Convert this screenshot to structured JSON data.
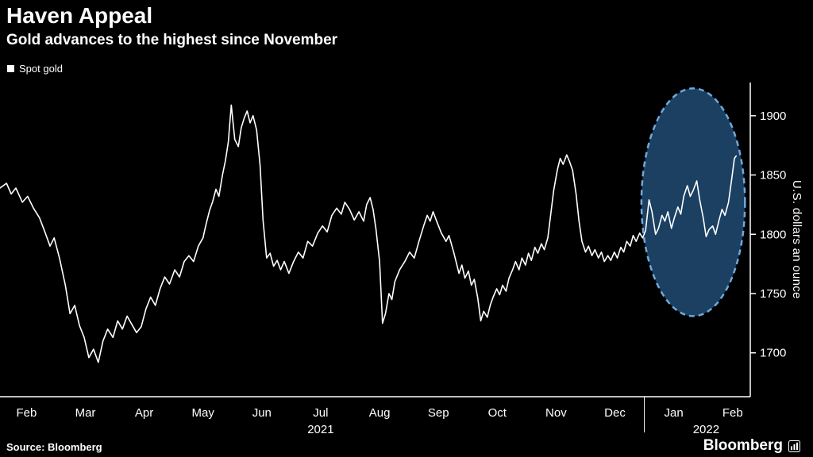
{
  "header": {
    "title": "Haven Appeal",
    "subtitle": "Gold advances to the highest since November"
  },
  "legend": {
    "items": [
      {
        "label": "Spot gold",
        "marker_color": "#ffffff"
      }
    ]
  },
  "footer": {
    "source": "Source: Bloomberg",
    "brand": "Bloomberg"
  },
  "colors": {
    "background": "#000000",
    "line": "#ffffff",
    "axis": "#ffffff",
    "text": "#ffffff",
    "highlight_fill": "#1b4061",
    "highlight_stroke": "#6fa8dc"
  },
  "chart_data": {
    "type": "line",
    "title": "Haven Appeal",
    "subtitle": "Gold advances to the highest since November",
    "series_name": "Spot gold",
    "ylabel": "U.S. dollars an ounce",
    "x_unit": "month-index (0 = Feb 2021, 12 = Feb 2022)",
    "xlim": [
      -0.45,
      12.3
    ],
    "ylim": [
      1663,
      1928
    ],
    "yticks": [
      1700,
      1750,
      1800,
      1850,
      1900
    ],
    "months": [
      "Feb",
      "Mar",
      "Apr",
      "May",
      "Jun",
      "Jul",
      "Aug",
      "Sep",
      "Oct",
      "Nov",
      "Dec",
      "Jan",
      "Feb"
    ],
    "years": [
      {
        "label": "2021",
        "x": 5.0
      },
      {
        "label": "2022",
        "x": 11.55
      }
    ],
    "year_separator_x": 10.5,
    "highlight": {
      "note": "dashed ellipse highlighting Jan-Feb 2022 advance",
      "cx": 11.33,
      "cy": 1827,
      "rx": 0.88,
      "ry": 96
    },
    "points": [
      [
        -0.45,
        1839
      ],
      [
        -0.34,
        1843
      ],
      [
        -0.26,
        1834
      ],
      [
        -0.18,
        1839
      ],
      [
        -0.07,
        1827
      ],
      [
        0.02,
        1832
      ],
      [
        0.12,
        1822
      ],
      [
        0.22,
        1814
      ],
      [
        0.32,
        1801
      ],
      [
        0.4,
        1790
      ],
      [
        0.47,
        1797
      ],
      [
        0.56,
        1780
      ],
      [
        0.66,
        1757
      ],
      [
        0.74,
        1733
      ],
      [
        0.82,
        1740
      ],
      [
        0.9,
        1723
      ],
      [
        0.98,
        1713
      ],
      [
        1.06,
        1696
      ],
      [
        1.14,
        1703
      ],
      [
        1.22,
        1692
      ],
      [
        1.3,
        1710
      ],
      [
        1.38,
        1720
      ],
      [
        1.47,
        1713
      ],
      [
        1.55,
        1727
      ],
      [
        1.63,
        1720
      ],
      [
        1.71,
        1731
      ],
      [
        1.79,
        1724
      ],
      [
        1.87,
        1717
      ],
      [
        1.95,
        1722
      ],
      [
        2.03,
        1737
      ],
      [
        2.11,
        1747
      ],
      [
        2.19,
        1740
      ],
      [
        2.27,
        1754
      ],
      [
        2.35,
        1764
      ],
      [
        2.43,
        1758
      ],
      [
        2.52,
        1770
      ],
      [
        2.6,
        1764
      ],
      [
        2.68,
        1777
      ],
      [
        2.76,
        1782
      ],
      [
        2.84,
        1777
      ],
      [
        2.92,
        1790
      ],
      [
        3.0,
        1797
      ],
      [
        3.05,
        1808
      ],
      [
        3.11,
        1820
      ],
      [
        3.16,
        1827
      ],
      [
        3.22,
        1838
      ],
      [
        3.27,
        1832
      ],
      [
        3.33,
        1850
      ],
      [
        3.38,
        1862
      ],
      [
        3.43,
        1878
      ],
      [
        3.48,
        1909
      ],
      [
        3.54,
        1880
      ],
      [
        3.6,
        1874
      ],
      [
        3.65,
        1890
      ],
      [
        3.7,
        1898
      ],
      [
        3.75,
        1904
      ],
      [
        3.8,
        1894
      ],
      [
        3.85,
        1900
      ],
      [
        3.91,
        1888
      ],
      [
        3.97,
        1858
      ],
      [
        4.02,
        1812
      ],
      [
        4.08,
        1780
      ],
      [
        4.14,
        1784
      ],
      [
        4.2,
        1773
      ],
      [
        4.26,
        1778
      ],
      [
        4.32,
        1770
      ],
      [
        4.38,
        1777
      ],
      [
        4.46,
        1767
      ],
      [
        4.54,
        1777
      ],
      [
        4.62,
        1785
      ],
      [
        4.7,
        1780
      ],
      [
        4.78,
        1794
      ],
      [
        4.86,
        1790
      ],
      [
        4.95,
        1801
      ],
      [
        5.03,
        1807
      ],
      [
        5.11,
        1802
      ],
      [
        5.19,
        1816
      ],
      [
        5.27,
        1822
      ],
      [
        5.35,
        1817
      ],
      [
        5.41,
        1827
      ],
      [
        5.49,
        1821
      ],
      [
        5.57,
        1812
      ],
      [
        5.65,
        1819
      ],
      [
        5.73,
        1811
      ],
      [
        5.78,
        1825
      ],
      [
        5.84,
        1831
      ],
      [
        5.89,
        1821
      ],
      [
        5.94,
        1804
      ],
      [
        6.0,
        1777
      ],
      [
        6.05,
        1725
      ],
      [
        6.1,
        1733
      ],
      [
        6.16,
        1750
      ],
      [
        6.21,
        1745
      ],
      [
        6.26,
        1760
      ],
      [
        6.34,
        1770
      ],
      [
        6.43,
        1777
      ],
      [
        6.51,
        1785
      ],
      [
        6.59,
        1780
      ],
      [
        6.67,
        1794
      ],
      [
        6.75,
        1807
      ],
      [
        6.81,
        1816
      ],
      [
        6.86,
        1811
      ],
      [
        6.91,
        1819
      ],
      [
        6.97,
        1811
      ],
      [
        7.05,
        1801
      ],
      [
        7.13,
        1794
      ],
      [
        7.18,
        1799
      ],
      [
        7.26,
        1785
      ],
      [
        7.35,
        1767
      ],
      [
        7.4,
        1774
      ],
      [
        7.45,
        1763
      ],
      [
        7.51,
        1769
      ],
      [
        7.56,
        1757
      ],
      [
        7.61,
        1762
      ],
      [
        7.67,
        1746
      ],
      [
        7.72,
        1727
      ],
      [
        7.77,
        1735
      ],
      [
        7.83,
        1730
      ],
      [
        7.88,
        1740
      ],
      [
        7.93,
        1747
      ],
      [
        7.99,
        1754
      ],
      [
        8.04,
        1749
      ],
      [
        8.09,
        1757
      ],
      [
        8.15,
        1752
      ],
      [
        8.2,
        1763
      ],
      [
        8.26,
        1770
      ],
      [
        8.31,
        1777
      ],
      [
        8.37,
        1770
      ],
      [
        8.42,
        1780
      ],
      [
        8.48,
        1774
      ],
      [
        8.53,
        1784
      ],
      [
        8.58,
        1778
      ],
      [
        8.64,
        1789
      ],
      [
        8.69,
        1784
      ],
      [
        8.75,
        1792
      ],
      [
        8.8,
        1787
      ],
      [
        8.86,
        1797
      ],
      [
        8.91,
        1817
      ],
      [
        8.96,
        1837
      ],
      [
        9.02,
        1854
      ],
      [
        9.07,
        1864
      ],
      [
        9.12,
        1859
      ],
      [
        9.18,
        1867
      ],
      [
        9.23,
        1861
      ],
      [
        9.28,
        1854
      ],
      [
        9.34,
        1834
      ],
      [
        9.39,
        1811
      ],
      [
        9.44,
        1794
      ],
      [
        9.5,
        1785
      ],
      [
        9.55,
        1790
      ],
      [
        9.61,
        1782
      ],
      [
        9.66,
        1787
      ],
      [
        9.72,
        1780
      ],
      [
        9.77,
        1785
      ],
      [
        9.82,
        1777
      ],
      [
        9.88,
        1782
      ],
      [
        9.93,
        1778
      ],
      [
        9.99,
        1785
      ],
      [
        10.04,
        1780
      ],
      [
        10.1,
        1789
      ],
      [
        10.15,
        1785
      ],
      [
        10.2,
        1794
      ],
      [
        10.26,
        1790
      ],
      [
        10.31,
        1799
      ],
      [
        10.36,
        1794
      ],
      [
        10.42,
        1801
      ],
      [
        10.47,
        1797
      ],
      [
        10.52,
        1803
      ],
      [
        10.58,
        1829
      ],
      [
        10.63,
        1819
      ],
      [
        10.69,
        1800
      ],
      [
        10.74,
        1805
      ],
      [
        10.8,
        1816
      ],
      [
        10.85,
        1811
      ],
      [
        10.9,
        1819
      ],
      [
        10.96,
        1805
      ],
      [
        11.01,
        1814
      ],
      [
        11.07,
        1823
      ],
      [
        11.12,
        1817
      ],
      [
        11.17,
        1832
      ],
      [
        11.23,
        1841
      ],
      [
        11.28,
        1832
      ],
      [
        11.33,
        1837
      ],
      [
        11.39,
        1845
      ],
      [
        11.44,
        1829
      ],
      [
        11.5,
        1814
      ],
      [
        11.55,
        1798
      ],
      [
        11.6,
        1804
      ],
      [
        11.66,
        1807
      ],
      [
        11.71,
        1800
      ],
      [
        11.77,
        1812
      ],
      [
        11.82,
        1821
      ],
      [
        11.87,
        1816
      ],
      [
        11.93,
        1827
      ],
      [
        11.98,
        1845
      ],
      [
        12.03,
        1864
      ],
      [
        12.06,
        1866
      ]
    ]
  }
}
